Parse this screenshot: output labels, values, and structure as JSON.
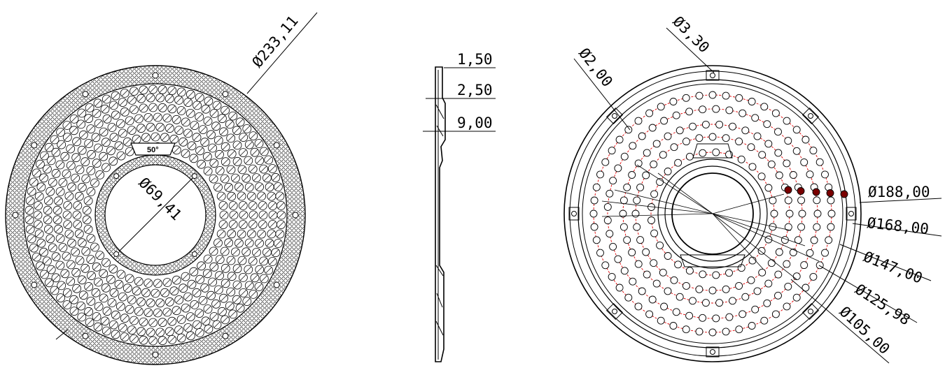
{
  "views": {
    "front": {
      "outer_diameter": "Ø233,11",
      "inner_diameter": "Ø69,41",
      "angle_label": "50°"
    },
    "section": {
      "dims": [
        "1,50",
        "2,50",
        "9,00"
      ]
    },
    "back": {
      "hole_diameters": [
        "Ø3,30",
        "Ø2,00"
      ],
      "circle_diameters": [
        "Ø188,00",
        "Ø168,00",
        "Ø147,00",
        "Ø125,98",
        "Ø105,00"
      ]
    }
  },
  "colors": {
    "line": "#000000",
    "pitch_circle": "#e00000",
    "filled_hole": "#7a0000"
  }
}
